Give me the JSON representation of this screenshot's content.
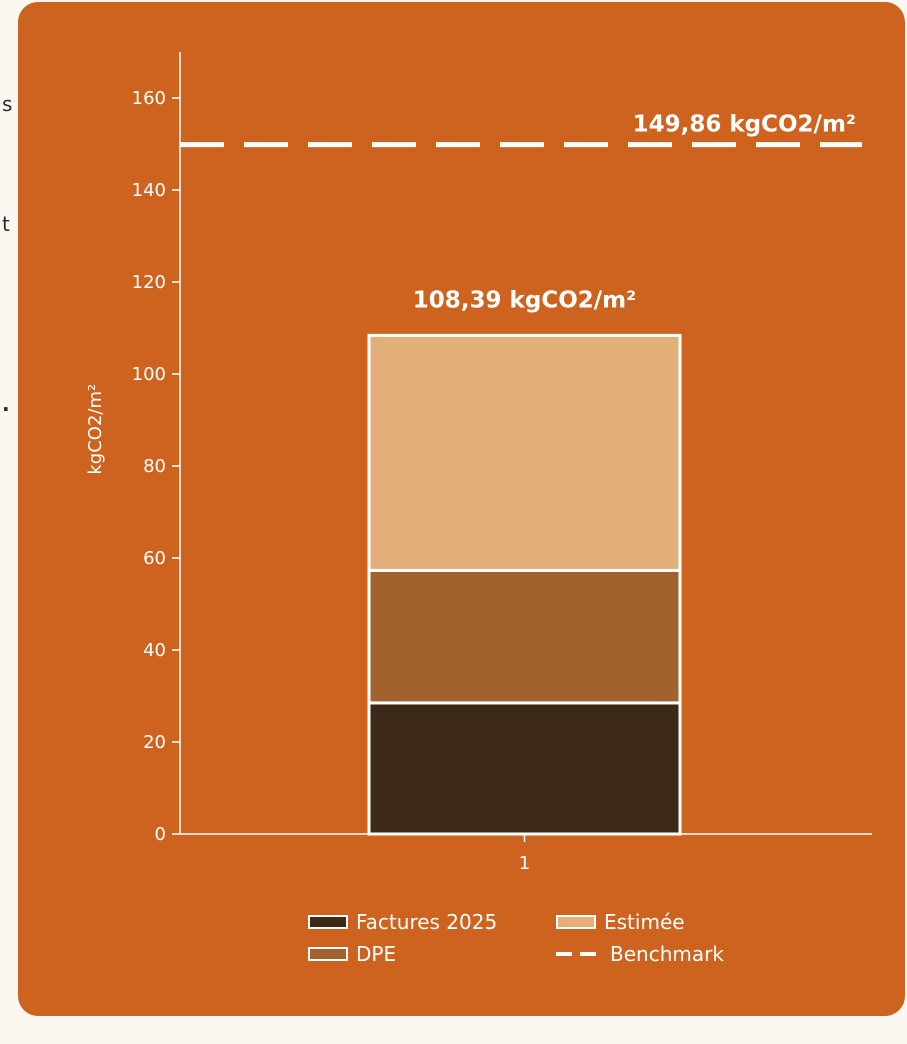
{
  "page_fragments": [
    "s",
    "t",
    "."
  ],
  "colors": {
    "card_background": "#cd631f",
    "factures": "#3d2918",
    "dpe": "#a2622e",
    "estimee": "#e3af78",
    "benchmark": "#ffffff",
    "edge": "#ffffff"
  },
  "chart_data": {
    "type": "bar",
    "stacked": true,
    "categories": [
      "1"
    ],
    "series": [
      {
        "name": "Factures 2025",
        "values": [
          28.5
        ]
      },
      {
        "name": "DPE",
        "values": [
          28.8
        ]
      },
      {
        "name": "Estimée",
        "values": [
          51.09
        ]
      }
    ],
    "total_label": "108,39 kgCO2/m²",
    "benchmark": {
      "name": "Benchmark",
      "value": 149.86,
      "label": "149,86 kgCO2/m²"
    },
    "ylabel": "kgCO2/m²",
    "xlabel": "",
    "ylim": [
      0,
      170
    ],
    "yticks": [
      0,
      20,
      40,
      60,
      80,
      100,
      120,
      140,
      160
    ],
    "grid": false,
    "legend_position": "bottom"
  }
}
